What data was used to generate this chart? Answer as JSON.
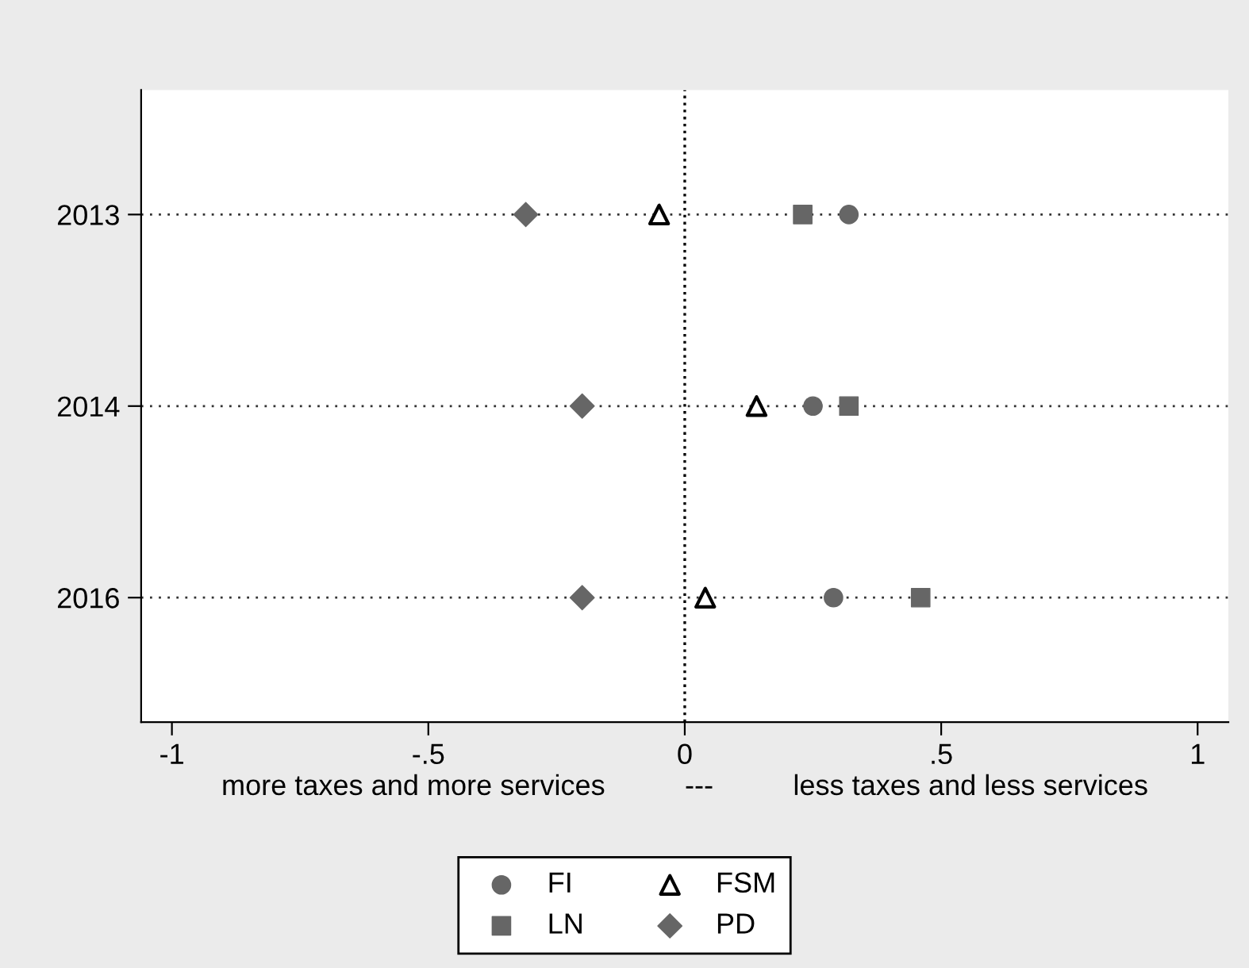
{
  "chart_data": {
    "type": "scatter",
    "orientation": "horizontal",
    "categories": [
      "2013",
      "2014",
      "2016"
    ],
    "xlabel": "more taxes and more services          ---          less taxes and less services",
    "xlim": [
      -1.06,
      1.06
    ],
    "xticks": [
      {
        "value": -1,
        "label": "-1"
      },
      {
        "value": -0.5,
        "label": "-.5"
      },
      {
        "value": 0,
        "label": "0"
      },
      {
        "value": 0.5,
        "label": ".5"
      },
      {
        "value": 1,
        "label": "1"
      }
    ],
    "grid": "y",
    "legend": "bottom",
    "ref_lines": [
      {
        "axis": "x",
        "value": 0,
        "color": "#000000",
        "line_style": "dotted"
      }
    ],
    "series": [
      {
        "name": "FI",
        "color": "#666666",
        "marker": "circle",
        "values": [
          0.32,
          0.25,
          0.29
        ]
      },
      {
        "name": "FSM",
        "color": "#000000",
        "marker": "triangle_open",
        "values": [
          -0.05,
          0.14,
          0.04
        ]
      },
      {
        "name": "LN",
        "color": "#666666",
        "marker": "square",
        "values": [
          0.23,
          0.32,
          0.46
        ]
      },
      {
        "name": "PD",
        "color": "#666666",
        "marker": "diamond",
        "values": [
          -0.31,
          -0.2,
          -0.2
        ]
      }
    ]
  }
}
